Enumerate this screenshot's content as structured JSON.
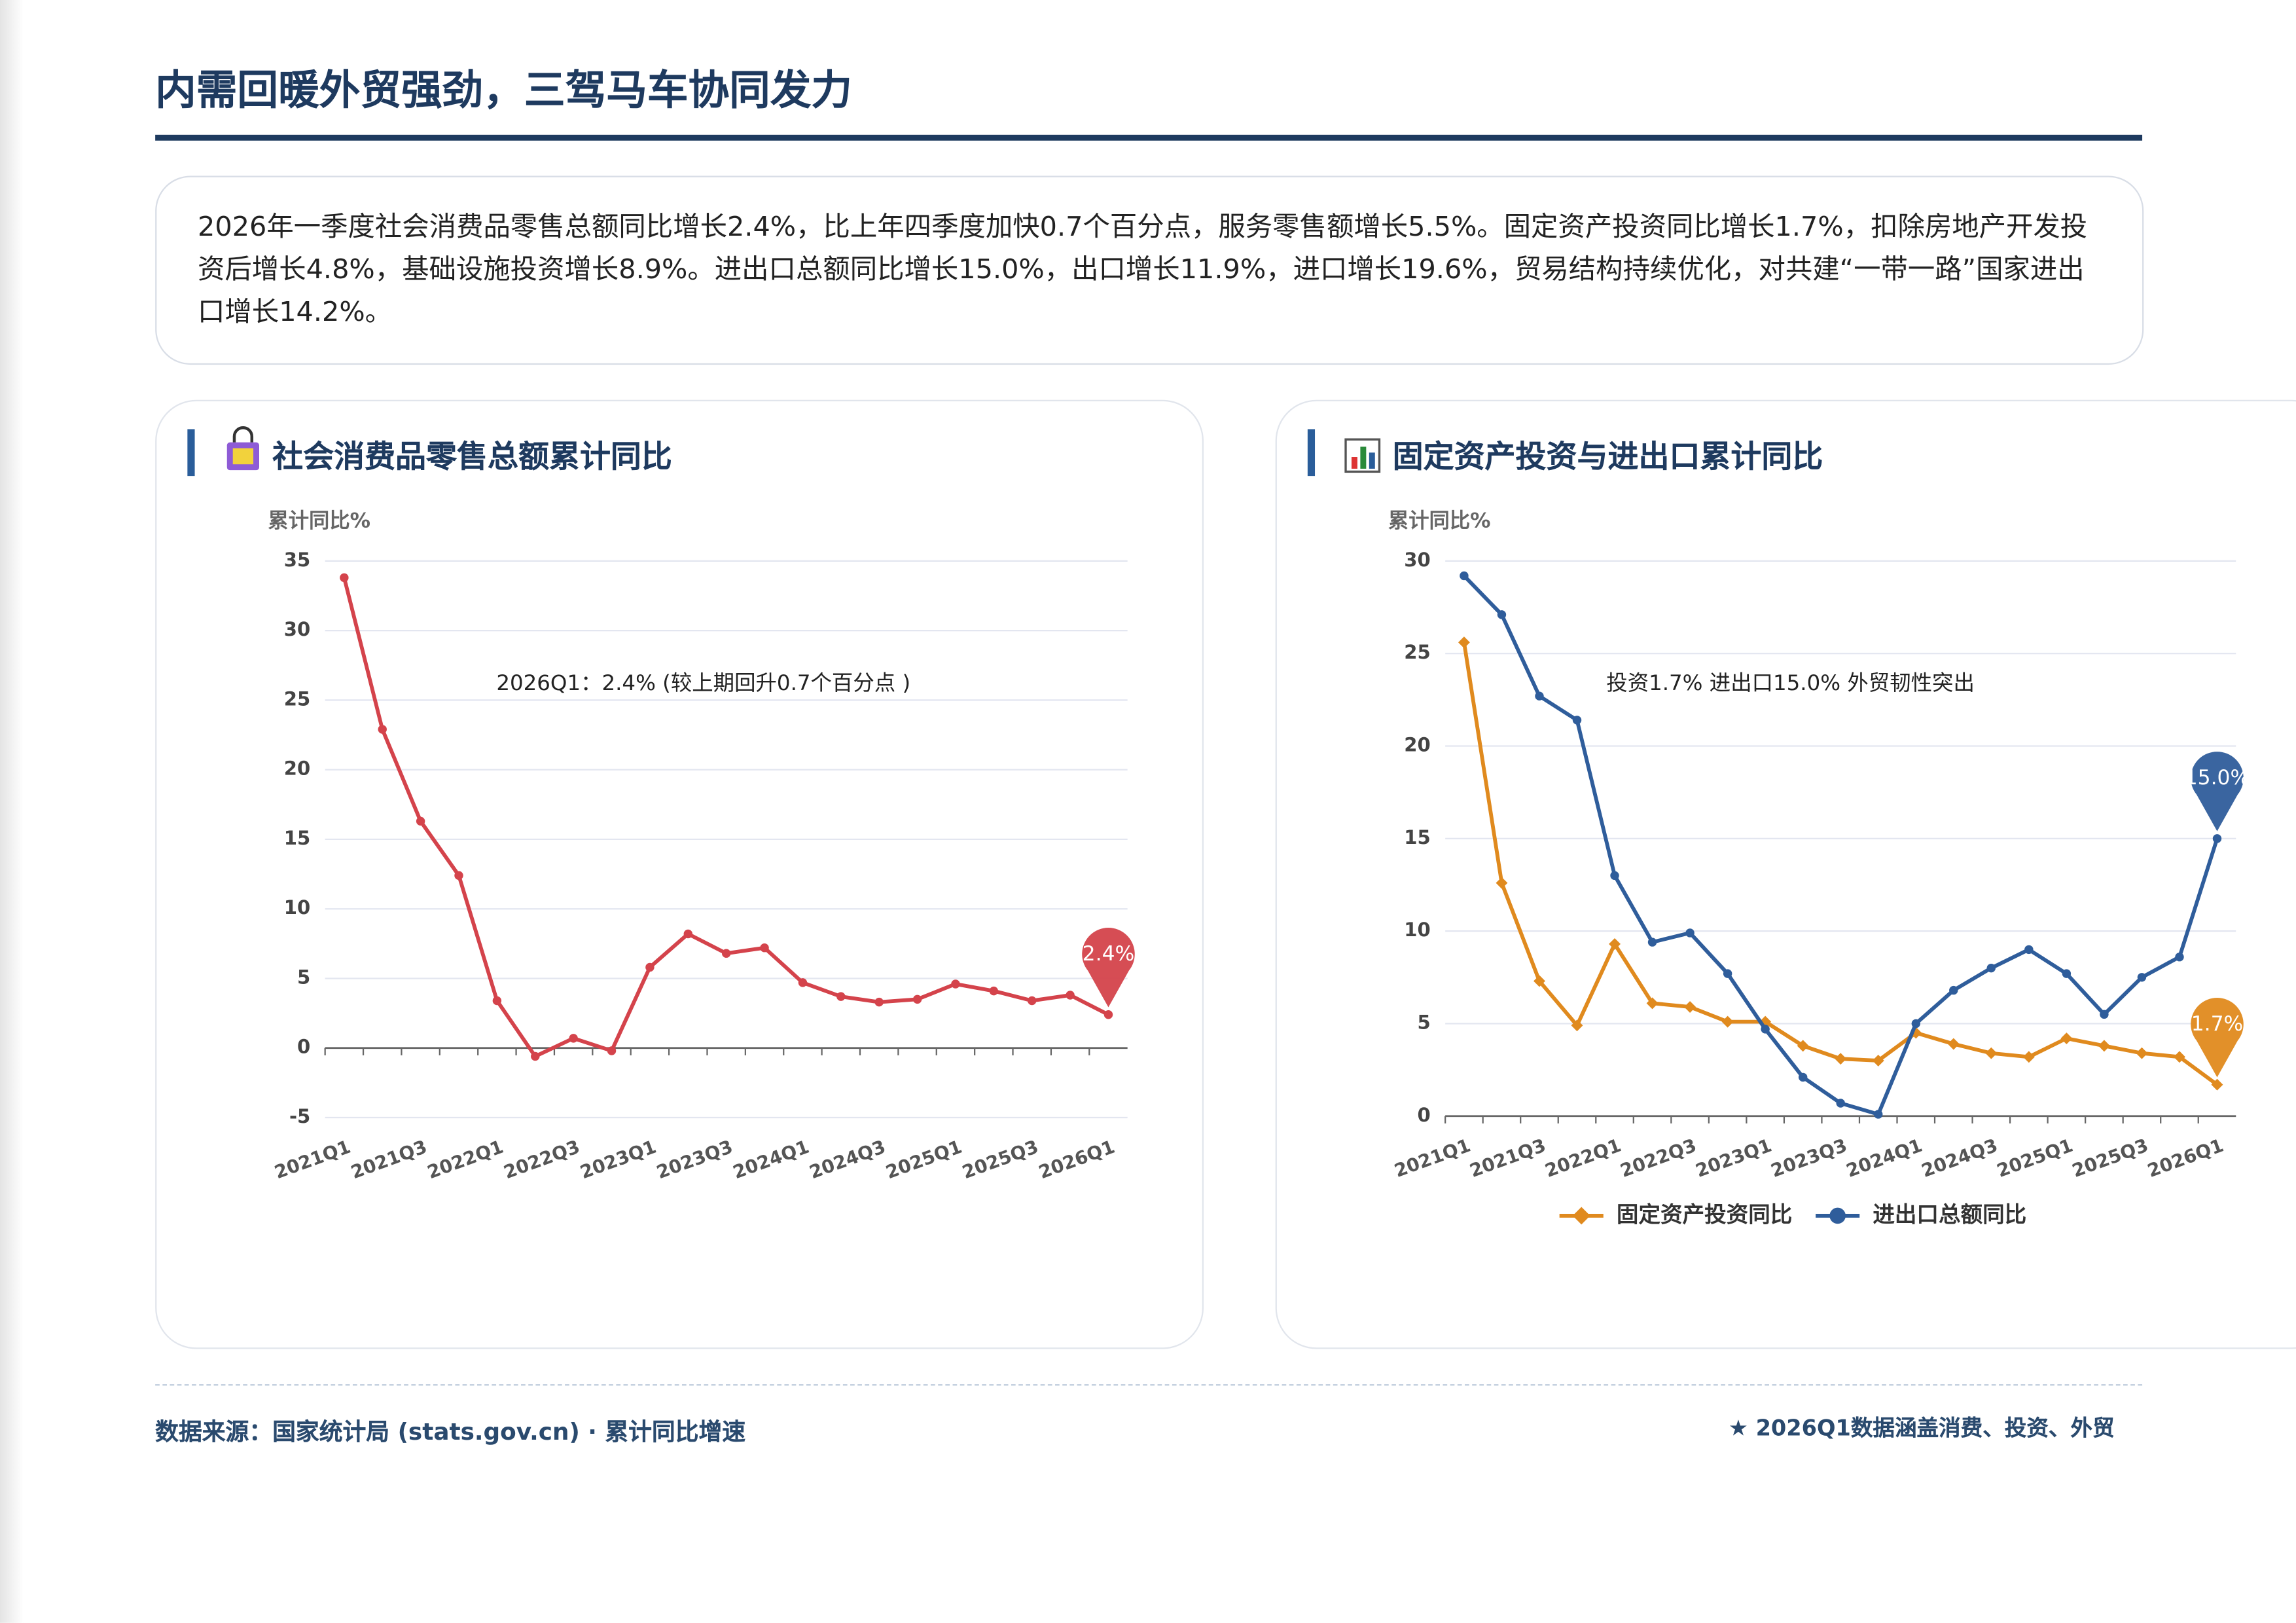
{
  "header": {
    "title": "内需回暖外贸强劲，三驾马车协同发力"
  },
  "summary": "2026年一季度社会消费品零售总额同比增长2.4%，比上年四季度加快0.7个百分点，服务零售额增长5.5%。固定资产投资同比增长1.7%，扣除房地产开发投资后增长4.8%，基础设施投资增长8.9%。进出口总额同比增长15.0%，出口增长11.9%，进口增长19.6%，贸易结构持续优化，对共建“一带一路”国家进出口增长14.2%。",
  "chart_data": [
    {
      "type": "line",
      "title": "社会消费品零售总额累计同比",
      "y_label": "累计同比%",
      "annotation": "2026Q1：2.4% (较上期回升0.7个百分点 )",
      "categories": [
        "2021Q1",
        null,
        "2021Q3",
        null,
        "2022Q1",
        null,
        "2022Q3",
        null,
        "2023Q1",
        null,
        "2023Q3",
        null,
        "2024Q1",
        null,
        "2024Q3",
        null,
        "2025Q1",
        null,
        "2025Q3",
        null,
        "2026Q1"
      ],
      "values": [
        33.8,
        22.9,
        16.3,
        12.4,
        3.4,
        -0.6,
        0.7,
        -0.2,
        5.8,
        8.2,
        6.8,
        7.2,
        4.7,
        3.7,
        3.3,
        3.5,
        4.6,
        4.1,
        3.4,
        3.8,
        2.4
      ],
      "value_labels": [
        null,
        null,
        null,
        null,
        null,
        null,
        null,
        null,
        null,
        null,
        null,
        null,
        null,
        null,
        null,
        null,
        null,
        null,
        null,
        null,
        "2.4%"
      ],
      "color": "#d4434b",
      "marker": "circle",
      "ylim": [
        -5,
        35
      ],
      "yticks": [
        -5,
        0,
        5,
        10,
        15,
        20,
        25,
        30,
        35
      ],
      "grid": true
    },
    {
      "type": "line",
      "title": "固定资产投资与进出口累计同比",
      "y_label": "累计同比%",
      "annotation": "投资1.7% 进出口15.0% 外贸韧性突出",
      "categories": [
        "2021Q1",
        null,
        "2021Q3",
        null,
        "2022Q1",
        null,
        "2022Q3",
        null,
        "2023Q1",
        null,
        "2023Q3",
        null,
        "2024Q1",
        null,
        "2024Q3",
        null,
        "2025Q1",
        null,
        "2025Q3",
        null,
        "2026Q1"
      ],
      "series": [
        {
          "name": "固定资产投资同比",
          "color": "#e08a1e",
          "marker": "diamond",
          "values": [
            25.6,
            12.6,
            7.3,
            4.9,
            9.3,
            6.1,
            5.9,
            5.1,
            5.1,
            3.8,
            3.1,
            3.0,
            4.5,
            3.9,
            3.4,
            3.2,
            4.2,
            3.8,
            3.4,
            3.2,
            1.7
          ],
          "value_labels": [
            null,
            null,
            null,
            null,
            null,
            null,
            null,
            null,
            null,
            null,
            null,
            null,
            null,
            null,
            null,
            null,
            null,
            null,
            null,
            null,
            "1.7%"
          ]
        },
        {
          "name": "进出口总额同比",
          "color": "#2f5d9b",
          "marker": "circle",
          "values": [
            29.2,
            27.1,
            22.7,
            21.4,
            13.0,
            9.4,
            9.9,
            7.7,
            4.7,
            2.1,
            0.7,
            0.1,
            5.0,
            6.8,
            8.0,
            9.0,
            7.7,
            5.5,
            7.5,
            8.6,
            15.0
          ],
          "value_labels": [
            null,
            null,
            null,
            null,
            null,
            null,
            null,
            null,
            null,
            null,
            null,
            null,
            null,
            null,
            null,
            null,
            null,
            null,
            null,
            null,
            "15.0%"
          ]
        }
      ],
      "ylim": [
        0,
        30
      ],
      "yticks": [
        0,
        5,
        10,
        15,
        20,
        25,
        30
      ],
      "grid": true,
      "legend": "bottom"
    }
  ],
  "footer": {
    "source": "数据来源：国家统计局 (stats.gov.cn) · 累计同比增速",
    "note": "★ 2026Q1数据涵盖消费、投资、外贸"
  }
}
